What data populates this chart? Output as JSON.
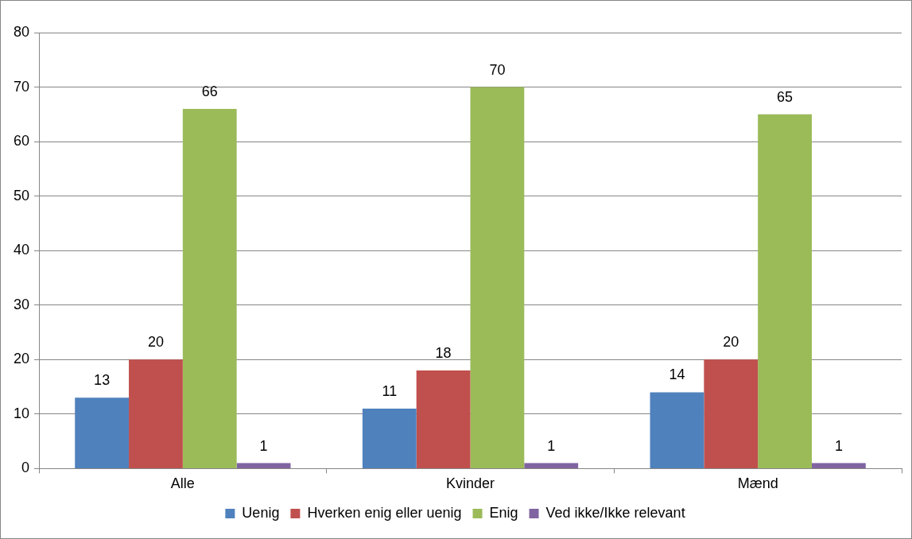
{
  "chart_data": {
    "type": "bar",
    "categories": [
      "Alle",
      "Kvinder",
      "Mænd"
    ],
    "series": [
      {
        "name": "Uenig",
        "color": "#4f81bd",
        "values": [
          13,
          11,
          14
        ]
      },
      {
        "name": "Hverken enig eller uenig",
        "color": "#c0504d",
        "values": [
          20,
          18,
          20
        ]
      },
      {
        "name": "Enig",
        "color": "#9bbb59",
        "values": [
          66,
          70,
          65
        ]
      },
      {
        "name": "Ved ikke/Ikke relevant",
        "color": "#8064a2",
        "values": [
          1,
          1,
          1
        ]
      }
    ],
    "ylim": [
      0,
      80
    ],
    "yticks": [
      0,
      10,
      20,
      30,
      40,
      50,
      60,
      70,
      80
    ],
    "grid": "y",
    "legend": "bottom",
    "data_labels": true
  }
}
